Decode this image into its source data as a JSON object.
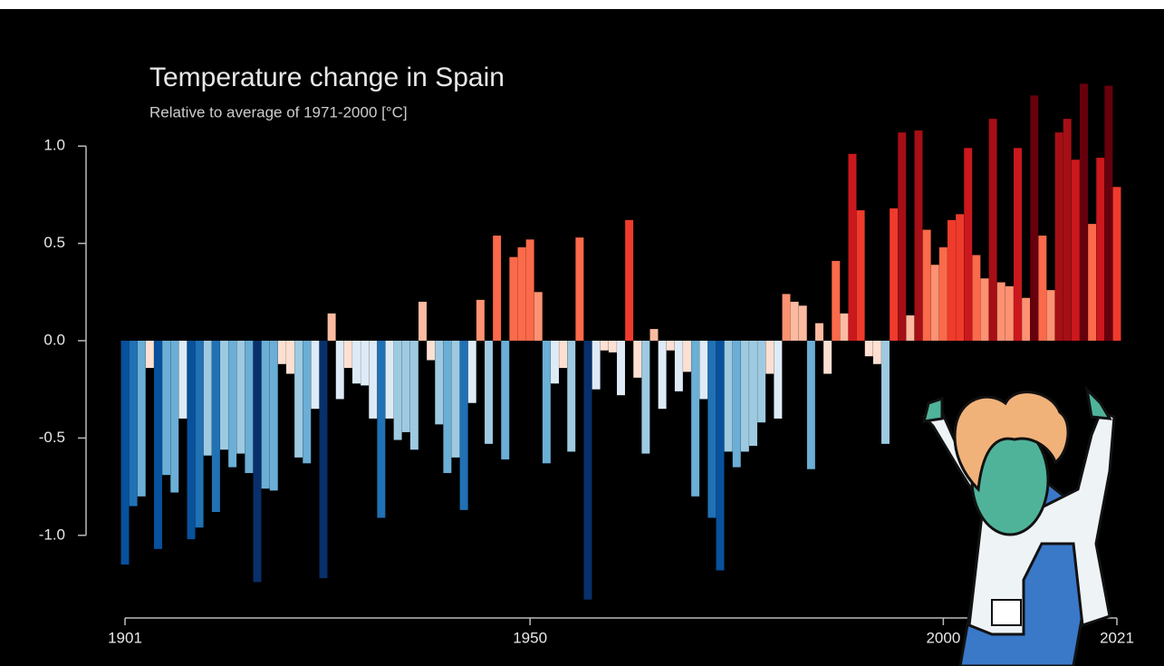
{
  "chart_data": {
    "type": "bar",
    "title": "Temperature change in Spain",
    "subtitle": "Relative to average of 1971-2000  [°C]",
    "x": [
      1901,
      1902,
      1903,
      1904,
      1905,
      1906,
      1907,
      1908,
      1909,
      1910,
      1911,
      1912,
      1913,
      1914,
      1915,
      1916,
      1917,
      1918,
      1919,
      1920,
      1921,
      1922,
      1923,
      1924,
      1925,
      1926,
      1927,
      1928,
      1929,
      1930,
      1931,
      1932,
      1933,
      1934,
      1935,
      1936,
      1937,
      1938,
      1939,
      1940,
      1941,
      1942,
      1943,
      1944,
      1945,
      1946,
      1947,
      1948,
      1949,
      1950,
      1951,
      1952,
      1953,
      1954,
      1955,
      1956,
      1957,
      1958,
      1959,
      1960,
      1961,
      1962,
      1963,
      1964,
      1965,
      1966,
      1967,
      1968,
      1969,
      1970,
      1971,
      1972,
      1973,
      1974,
      1975,
      1976,
      1977,
      1978,
      1979,
      1980,
      1981,
      1982,
      1983,
      1984,
      1985,
      1986,
      1987,
      1988,
      1989,
      1990,
      1991,
      1992,
      1993,
      1994,
      1995,
      1996,
      1997,
      1998,
      1999,
      2000,
      2001,
      2002,
      2003,
      2004,
      2005,
      2006,
      2007,
      2008,
      2009,
      2010,
      2011,
      2012,
      2013,
      2014,
      2015,
      2016,
      2017,
      2018,
      2019,
      2020,
      2021
    ],
    "values": [
      -1.15,
      -0.85,
      -0.8,
      -0.14,
      -1.07,
      -0.69,
      -0.78,
      -0.4,
      -1.02,
      -0.96,
      -0.59,
      -0.88,
      -0.56,
      -0.65,
      -0.58,
      -0.68,
      -1.24,
      -0.76,
      -0.77,
      -0.12,
      -0.17,
      -0.6,
      -0.63,
      -0.35,
      -1.22,
      0.14,
      -0.3,
      -0.14,
      -0.22,
      -0.23,
      -0.4,
      -0.91,
      -0.4,
      -0.51,
      -0.47,
      -0.56,
      0.2,
      -0.1,
      -0.43,
      -0.68,
      -0.6,
      -0.87,
      -0.32,
      0.21,
      -0.53,
      0.54,
      -0.61,
      0.43,
      0.48,
      0.52,
      0.25,
      -0.63,
      -0.22,
      -0.14,
      -0.57,
      0.53,
      -1.33,
      -0.25,
      -0.05,
      -0.06,
      -0.28,
      0.62,
      -0.19,
      -0.58,
      0.06,
      -0.35,
      -0.05,
      -0.26,
      -0.16,
      -0.8,
      -0.3,
      -0.91,
      -1.18,
      -0.57,
      -0.65,
      -0.57,
      -0.54,
      -0.42,
      -0.17,
      -0.4,
      0.24,
      0.2,
      0.18,
      -0.66,
      0.09,
      -0.17,
      0.41,
      0.14,
      0.96,
      0.67,
      -0.08,
      -0.12,
      -0.53,
      0.68,
      1.07,
      0.13,
      1.08,
      0.57,
      0.39,
      0.48,
      0.62,
      0.65,
      0.99,
      0.44,
      0.32,
      1.14,
      0.3,
      0.28,
      0.99,
      0.22,
      1.26,
      0.54,
      0.26,
      1.07,
      1.14,
      0.93,
      1.32,
      0.6,
      0.94,
      1.31,
      0.79
    ],
    "colormap": [
      "#08306b",
      "#08519c",
      "#2171b5",
      "#6baed6",
      "#9ecae1",
      "#deebf7",
      "#fee0d2",
      "#fcbba1",
      "#fc9272",
      "#fb6a4a",
      "#ef3b2c",
      "#cb181d",
      "#a50f15",
      "#67000d"
    ],
    "xlim": [
      1901,
      2021
    ],
    "xticks": [
      1901,
      1950,
      2000,
      2021
    ],
    "ylim": [
      -1.42,
      1.42
    ],
    "yticks": [
      {
        "value": 1,
        "label": "1.0"
      },
      0.5,
      {
        "value": 0,
        "label": "0.0"
      },
      -0.5,
      {
        "value": -1,
        "label": "-1.0"
      }
    ]
  }
}
